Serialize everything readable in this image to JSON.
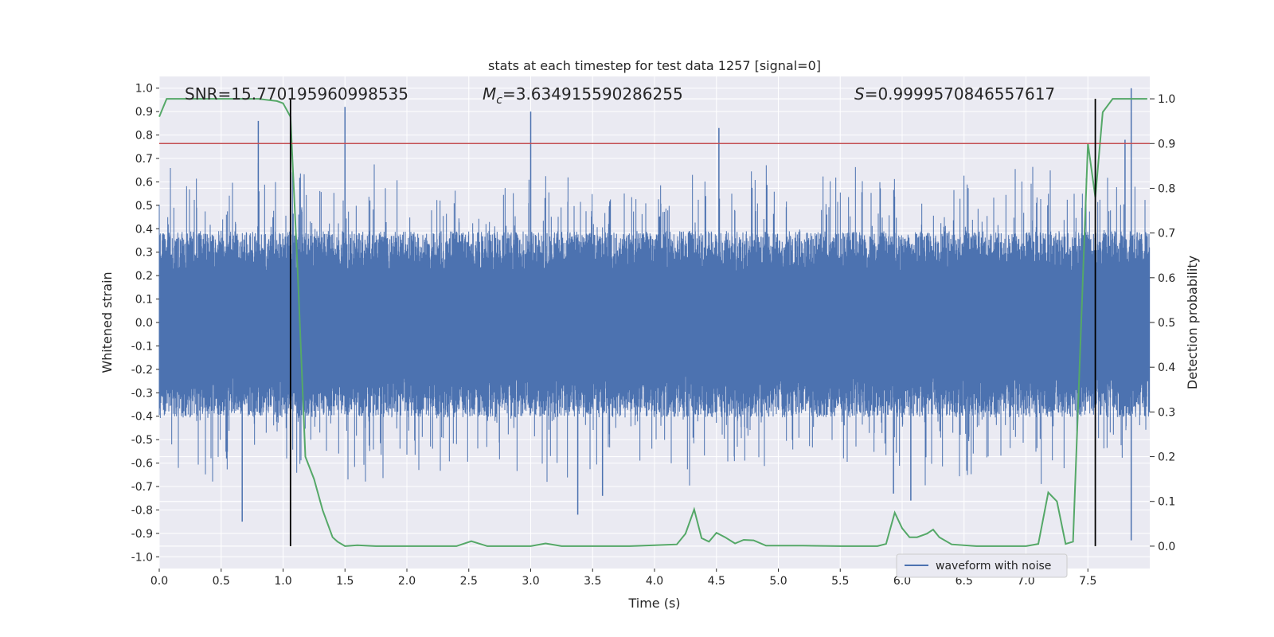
{
  "chart_data": {
    "type": "line",
    "title": "stats at each timestep for test data 1257 [signal=0]",
    "xlabel": "Time (s)",
    "ylabel": "Whitened strain",
    "y2label": "Detection probability",
    "xlim": [
      0.0,
      8.0
    ],
    "ylim": [
      -1.05,
      1.05
    ],
    "y2lim": [
      -0.05,
      1.05
    ],
    "xticks": [
      "0.0",
      "0.5",
      "1.0",
      "1.5",
      "2.0",
      "2.5",
      "3.0",
      "3.5",
      "4.0",
      "4.5",
      "5.0",
      "5.5",
      "6.0",
      "6.5",
      "7.0",
      "7.5"
    ],
    "yticks": [
      "1.0",
      "0.9",
      "0.8",
      "0.7",
      "0.6",
      "0.5",
      "0.4",
      "0.3",
      "0.2",
      "0.1",
      "0.0",
      "-0.1",
      "-0.2",
      "-0.3",
      "-0.4",
      "-0.5",
      "-0.6",
      "-0.7",
      "-0.8",
      "-0.9",
      "-1.0"
    ],
    "y2ticks": [
      "1.0",
      "0.9",
      "0.8",
      "0.7",
      "0.6",
      "0.5",
      "0.4",
      "0.3",
      "0.2",
      "0.1",
      "0.0"
    ],
    "annotations": {
      "snr": "SNR=15.770195960998535",
      "mc_symbol": "M",
      "mc_sub": "c",
      "mc_value": "=3.634915590286255",
      "s_symbol": "S",
      "s_value": "=0.9999570846557617"
    },
    "legend": {
      "label": "waveform with noise",
      "location": "lower-right"
    },
    "threshold": {
      "axis": "y2",
      "value": 0.9,
      "color": "#c44e52"
    },
    "vlines": [
      1.06,
      7.56
    ],
    "waveform": {
      "name": "waveform with noise",
      "color": "#4c72b0",
      "typical_envelope": 0.3,
      "peaks": [
        {
          "x": 0.67,
          "y": -0.85
        },
        {
          "x": 0.8,
          "y": 0.86
        },
        {
          "x": 1.5,
          "y": 0.92
        },
        {
          "x": 3.0,
          "y": 0.9
        },
        {
          "x": 3.38,
          "y": -0.82
        },
        {
          "x": 4.52,
          "y": 0.83
        },
        {
          "x": 5.93,
          "y": -0.73
        },
        {
          "x": 6.07,
          "y": -0.76
        },
        {
          "x": 7.85,
          "y": 1.0
        },
        {
          "x": 7.85,
          "y": -0.93
        },
        {
          "x": 3.58,
          "y": -0.74
        },
        {
          "x": 7.8,
          "y": 0.78
        }
      ]
    },
    "series": [
      {
        "name": "Detection probability",
        "axis": "y2",
        "color": "#55a868",
        "x": [
          0.0,
          0.06,
          0.2,
          0.5,
          0.8,
          0.95,
          1.0,
          1.06,
          1.12,
          1.18,
          1.25,
          1.32,
          1.4,
          1.44,
          1.5,
          1.6,
          1.75,
          2.0,
          2.25,
          2.4,
          2.52,
          2.65,
          3.0,
          3.12,
          3.25,
          3.5,
          3.8,
          4.0,
          4.18,
          4.25,
          4.32,
          4.38,
          4.44,
          4.5,
          4.57,
          4.65,
          4.72,
          4.8,
          4.9,
          5.2,
          5.5,
          5.8,
          5.87,
          5.94,
          6.0,
          6.06,
          6.12,
          6.2,
          6.25,
          6.3,
          6.4,
          6.6,
          7.0,
          7.1,
          7.18,
          7.25,
          7.32,
          7.38,
          7.5,
          7.56,
          7.62,
          7.7,
          7.9,
          7.98
        ],
        "values": [
          0.96,
          1.0,
          1.0,
          1.0,
          1.0,
          0.995,
          0.99,
          0.96,
          0.6,
          0.2,
          0.15,
          0.08,
          0.02,
          0.01,
          0.0,
          0.002,
          0.0,
          0.0,
          0.0,
          0.0,
          0.011,
          0.0,
          0.0,
          0.006,
          0.0,
          0.0,
          0.0,
          0.002,
          0.004,
          0.028,
          0.082,
          0.018,
          0.01,
          0.03,
          0.02,
          0.006,
          0.014,
          0.013,
          0.001,
          0.001,
          0.0,
          0.0,
          0.005,
          0.075,
          0.04,
          0.02,
          0.02,
          0.028,
          0.037,
          0.02,
          0.004,
          0.0,
          0.0,
          0.005,
          0.12,
          0.1,
          0.005,
          0.01,
          0.9,
          0.78,
          0.97,
          1.0,
          1.0,
          1.0
        ]
      }
    ]
  }
}
